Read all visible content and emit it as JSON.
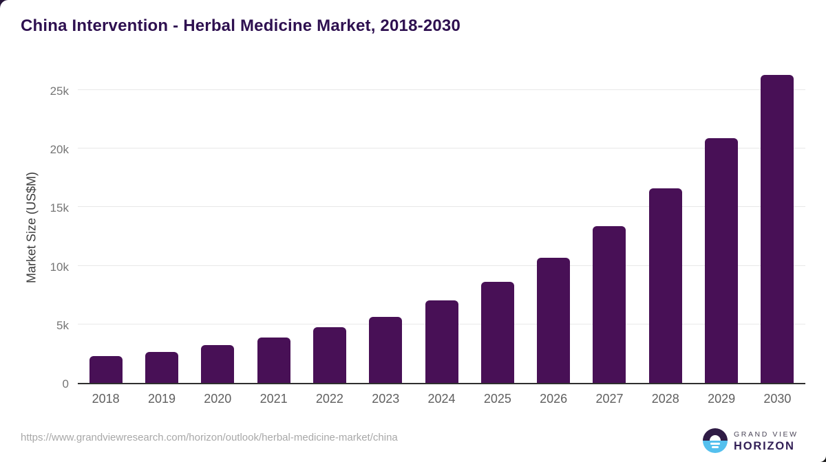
{
  "title": "China Intervention - Herbal Medicine Market, 2018-2030",
  "chart_data": {
    "type": "bar",
    "categories": [
      "2018",
      "2019",
      "2020",
      "2021",
      "2022",
      "2023",
      "2024",
      "2025",
      "2026",
      "2027",
      "2028",
      "2029",
      "2030"
    ],
    "values": [
      2300,
      2650,
      3250,
      3900,
      4750,
      5650,
      7050,
      8650,
      10700,
      13400,
      16600,
      20900,
      26300
    ],
    "title": "China Intervention - Herbal Medicine Market, 2018-2030",
    "xlabel": "",
    "ylabel": "Market Size (US$M)",
    "unit": "US$M",
    "ylim": [
      0,
      26900
    ],
    "yticks": [
      {
        "label": "0",
        "v": 0
      },
      {
        "label": "5k",
        "v": 5000
      },
      {
        "label": "10k",
        "v": 10000
      },
      {
        "label": "15k",
        "v": 15000
      },
      {
        "label": "20k",
        "v": 20000
      },
      {
        "label": "25k",
        "v": 25000
      }
    ],
    "grid": true,
    "legend": false,
    "bar_color": "#481056"
  },
  "footer": {
    "source_url": "https://www.grandviewresearch.com/horizon/outlook/herbal-medicine-market/china",
    "logo": {
      "line1": "GRAND VIEW",
      "line2": "HORIZON"
    }
  },
  "colors": {
    "title": "#2e1050",
    "bar": "#481056",
    "gridline": "#e8e8e8",
    "axis_line": "#2f2f2f",
    "tick_label": "#757575",
    "x_label": "#5f5f5f",
    "url_text": "#a8a8a8",
    "logo_purple": "#2f1b45",
    "logo_blue": "#54c0ee"
  }
}
